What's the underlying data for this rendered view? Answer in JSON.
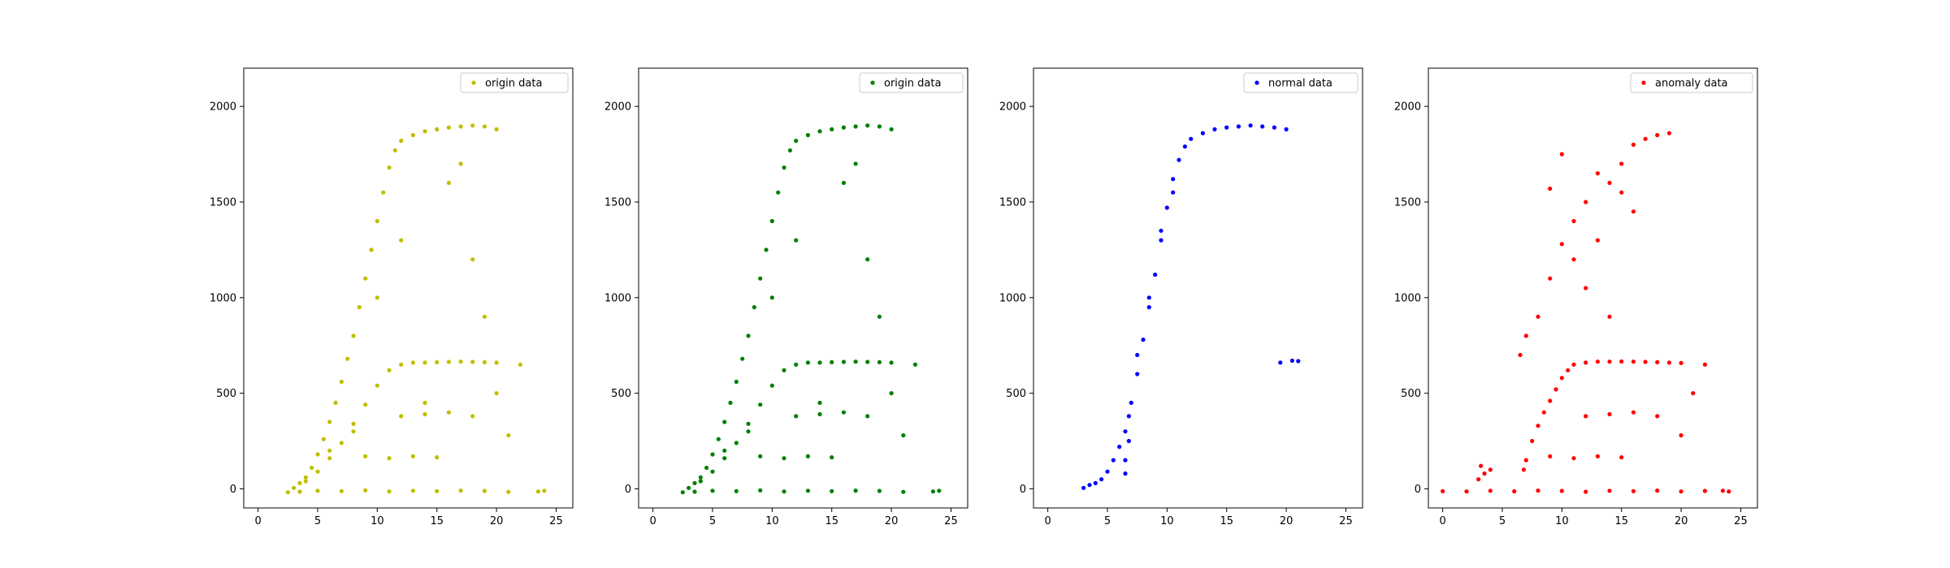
{
  "chart_data": [
    {
      "type": "scatter",
      "xlim": [
        -1.2,
        26.4
      ],
      "ylim": [
        -100,
        2200
      ],
      "xticks": [
        "0",
        "5",
        "10",
        "15",
        "20",
        "25"
      ],
      "yticks": [
        "0",
        "500",
        "1000",
        "1500",
        "2000"
      ],
      "grid": false,
      "legend_position": "top-right",
      "series": [
        {
          "name": "origin data",
          "color": "#bfbf00",
          "points": [
            [
              2.5,
              -18
            ],
            [
              3.5,
              -15
            ],
            [
              5,
              -10
            ],
            [
              7,
              -12
            ],
            [
              9,
              -8
            ],
            [
              11,
              -14
            ],
            [
              13,
              -10
            ],
            [
              15,
              -12
            ],
            [
              17,
              -9
            ],
            [
              19,
              -11
            ],
            [
              21,
              -16
            ],
            [
              23.5,
              -14
            ],
            [
              24,
              -10
            ],
            [
              3,
              5
            ],
            [
              3.5,
              30
            ],
            [
              4,
              60
            ],
            [
              4.5,
              110
            ],
            [
              5,
              180
            ],
            [
              5.5,
              260
            ],
            [
              6,
              350
            ],
            [
              6.5,
              450
            ],
            [
              7,
              560
            ],
            [
              7.5,
              680
            ],
            [
              8,
              800
            ],
            [
              8.5,
              950
            ],
            [
              9,
              1100
            ],
            [
              9.5,
              1250
            ],
            [
              10,
              1400
            ],
            [
              10.5,
              1550
            ],
            [
              11,
              1680
            ],
            [
              11.5,
              1770
            ],
            [
              12,
              1820
            ],
            [
              13,
              1850
            ],
            [
              14,
              1870
            ],
            [
              15,
              1880
            ],
            [
              16,
              1890
            ],
            [
              17,
              1895
            ],
            [
              18,
              1900
            ],
            [
              19,
              1895
            ],
            [
              20,
              1880
            ],
            [
              4,
              40
            ],
            [
              5,
              90
            ],
            [
              6,
              160
            ],
            [
              7,
              240
            ],
            [
              8,
              340
            ],
            [
              9,
              440
            ],
            [
              10,
              540
            ],
            [
              11,
              620
            ],
            [
              12,
              650
            ],
            [
              13,
              660
            ],
            [
              14,
              660
            ],
            [
              15,
              662
            ],
            [
              16,
              664
            ],
            [
              17,
              665
            ],
            [
              18,
              664
            ],
            [
              19,
              662
            ],
            [
              20,
              660
            ],
            [
              6,
              200
            ],
            [
              8,
              300
            ],
            [
              10,
              1000
            ],
            [
              12,
              1300
            ],
            [
              14,
              450
            ],
            [
              16,
              1600
            ],
            [
              17,
              1700
            ],
            [
              18,
              1200
            ],
            [
              19,
              900
            ],
            [
              20,
              500
            ],
            [
              21,
              280
            ],
            [
              22,
              650
            ],
            [
              9,
              170
            ],
            [
              11,
              160
            ],
            [
              13,
              170
            ],
            [
              15,
              165
            ],
            [
              12,
              380
            ],
            [
              14,
              390
            ],
            [
              16,
              400
            ],
            [
              18,
              380
            ]
          ]
        }
      ]
    },
    {
      "type": "scatter",
      "xlim": [
        -1.2,
        26.4
      ],
      "ylim": [
        -100,
        2200
      ],
      "xticks": [
        "0",
        "5",
        "10",
        "15",
        "20",
        "25"
      ],
      "yticks": [
        "0",
        "500",
        "1000",
        "1500",
        "2000"
      ],
      "grid": false,
      "legend_position": "top-right",
      "series": [
        {
          "name": "origin data",
          "color": "#008000",
          "points": [
            [
              2.5,
              -18
            ],
            [
              3.5,
              -15
            ],
            [
              5,
              -10
            ],
            [
              7,
              -12
            ],
            [
              9,
              -8
            ],
            [
              11,
              -14
            ],
            [
              13,
              -10
            ],
            [
              15,
              -12
            ],
            [
              17,
              -9
            ],
            [
              19,
              -11
            ],
            [
              21,
              -16
            ],
            [
              23.5,
              -14
            ],
            [
              24,
              -10
            ],
            [
              3,
              5
            ],
            [
              3.5,
              30
            ],
            [
              4,
              60
            ],
            [
              4.5,
              110
            ],
            [
              5,
              180
            ],
            [
              5.5,
              260
            ],
            [
              6,
              350
            ],
            [
              6.5,
              450
            ],
            [
              7,
              560
            ],
            [
              7.5,
              680
            ],
            [
              8,
              800
            ],
            [
              8.5,
              950
            ],
            [
              9,
              1100
            ],
            [
              9.5,
              1250
            ],
            [
              10,
              1400
            ],
            [
              10.5,
              1550
            ],
            [
              11,
              1680
            ],
            [
              11.5,
              1770
            ],
            [
              12,
              1820
            ],
            [
              13,
              1850
            ],
            [
              14,
              1870
            ],
            [
              15,
              1880
            ],
            [
              16,
              1890
            ],
            [
              17,
              1895
            ],
            [
              18,
              1900
            ],
            [
              19,
              1895
            ],
            [
              20,
              1880
            ],
            [
              4,
              40
            ],
            [
              5,
              90
            ],
            [
              6,
              160
            ],
            [
              7,
              240
            ],
            [
              8,
              340
            ],
            [
              9,
              440
            ],
            [
              10,
              540
            ],
            [
              11,
              620
            ],
            [
              12,
              650
            ],
            [
              13,
              660
            ],
            [
              14,
              660
            ],
            [
              15,
              662
            ],
            [
              16,
              664
            ],
            [
              17,
              665
            ],
            [
              18,
              664
            ],
            [
              19,
              662
            ],
            [
              20,
              660
            ],
            [
              6,
              200
            ],
            [
              8,
              300
            ],
            [
              10,
              1000
            ],
            [
              12,
              1300
            ],
            [
              14,
              450
            ],
            [
              16,
              1600
            ],
            [
              17,
              1700
            ],
            [
              18,
              1200
            ],
            [
              19,
              900
            ],
            [
              20,
              500
            ],
            [
              21,
              280
            ],
            [
              22,
              650
            ],
            [
              9,
              170
            ],
            [
              11,
              160
            ],
            [
              13,
              170
            ],
            [
              15,
              165
            ],
            [
              12,
              380
            ],
            [
              14,
              390
            ],
            [
              16,
              400
            ],
            [
              18,
              380
            ]
          ]
        }
      ]
    },
    {
      "type": "scatter",
      "xlim": [
        -1.2,
        26.4
      ],
      "ylim": [
        -100,
        2200
      ],
      "xticks": [
        "0",
        "5",
        "10",
        "15",
        "20",
        "25"
      ],
      "yticks": [
        "0",
        "500",
        "1000",
        "1500",
        "2000"
      ],
      "grid": false,
      "legend_position": "top-right",
      "series": [
        {
          "name": "normal data",
          "color": "#0000ff",
          "points": [
            [
              3,
              5
            ],
            [
              3.5,
              20
            ],
            [
              4,
              30
            ],
            [
              4.5,
              50
            ],
            [
              5,
              90
            ],
            [
              5.5,
              150
            ],
            [
              6,
              220
            ],
            [
              6.5,
              300
            ],
            [
              6.8,
              380
            ],
            [
              7,
              450
            ],
            [
              7.5,
              600
            ],
            [
              8,
              780
            ],
            [
              8.5,
              950
            ],
            [
              9,
              1120
            ],
            [
              9.5,
              1300
            ],
            [
              10,
              1470
            ],
            [
              10.5,
              1620
            ],
            [
              11,
              1720
            ],
            [
              11.5,
              1790
            ],
            [
              12,
              1830
            ],
            [
              13,
              1860
            ],
            [
              14,
              1880
            ],
            [
              15,
              1890
            ],
            [
              16,
              1895
            ],
            [
              17,
              1900
            ],
            [
              18,
              1895
            ],
            [
              19,
              1890
            ],
            [
              20,
              1880
            ],
            [
              6.5,
              150
            ],
            [
              6.8,
              250
            ],
            [
              6.5,
              80
            ],
            [
              7.5,
              700
            ],
            [
              8.5,
              1000
            ],
            [
              9.5,
              1350
            ],
            [
              10.5,
              1550
            ],
            [
              19.5,
              660
            ],
            [
              20.5,
              670
            ],
            [
              21,
              668
            ]
          ]
        }
      ]
    },
    {
      "type": "scatter",
      "xlim": [
        -1.2,
        26.4
      ],
      "ylim": [
        -100,
        2200
      ],
      "xticks": [
        "0",
        "5",
        "10",
        "15",
        "20",
        "25"
      ],
      "yticks": [
        "0",
        "500",
        "1000",
        "1500",
        "2000"
      ],
      "grid": false,
      "legend_position": "top-right",
      "series": [
        {
          "name": "anomaly data",
          "color": "#ff0000",
          "points": [
            [
              0,
              -12
            ],
            [
              2,
              -14
            ],
            [
              4,
              -10
            ],
            [
              6,
              -13
            ],
            [
              8,
              -9
            ],
            [
              10,
              -11
            ],
            [
              12,
              -15
            ],
            [
              14,
              -10
            ],
            [
              16,
              -12
            ],
            [
              18,
              -9
            ],
            [
              20,
              -14
            ],
            [
              22,
              -11
            ],
            [
              23.5,
              -10
            ],
            [
              24,
              -14
            ],
            [
              3,
              50
            ],
            [
              3.5,
              80
            ],
            [
              4,
              100
            ],
            [
              3.2,
              120
            ],
            [
              6.8,
              100
            ],
            [
              7,
              150
            ],
            [
              7.5,
              250
            ],
            [
              8,
              330
            ],
            [
              8.5,
              400
            ],
            [
              9,
              460
            ],
            [
              9.5,
              520
            ],
            [
              10,
              580
            ],
            [
              10.5,
              620
            ],
            [
              11,
              650
            ],
            [
              12,
              660
            ],
            [
              13,
              665
            ],
            [
              14,
              665
            ],
            [
              15,
              666
            ],
            [
              16,
              665
            ],
            [
              17,
              664
            ],
            [
              18,
              662
            ],
            [
              19,
              660
            ],
            [
              20,
              658
            ],
            [
              6.5,
              700
            ],
            [
              7,
              800
            ],
            [
              8,
              900
            ],
            [
              9,
              1100
            ],
            [
              10,
              1280
            ],
            [
              11,
              1400
            ],
            [
              12,
              1500
            ],
            [
              13,
              1650
            ],
            [
              14,
              1600
            ],
            [
              15,
              1700
            ],
            [
              16,
              1800
            ],
            [
              17,
              1830
            ],
            [
              18,
              1850
            ],
            [
              19,
              1860
            ],
            [
              9,
              1570
            ],
            [
              10,
              1750
            ],
            [
              11,
              1200
            ],
            [
              12,
              1050
            ],
            [
              13,
              1300
            ],
            [
              14,
              900
            ],
            [
              15,
              1550
            ],
            [
              16,
              1450
            ],
            [
              9,
              170
            ],
            [
              11,
              160
            ],
            [
              13,
              170
            ],
            [
              15,
              165
            ],
            [
              12,
              380
            ],
            [
              14,
              390
            ],
            [
              16,
              400
            ],
            [
              18,
              380
            ],
            [
              20,
              280
            ],
            [
              21,
              500
            ],
            [
              22,
              650
            ]
          ]
        }
      ]
    }
  ]
}
